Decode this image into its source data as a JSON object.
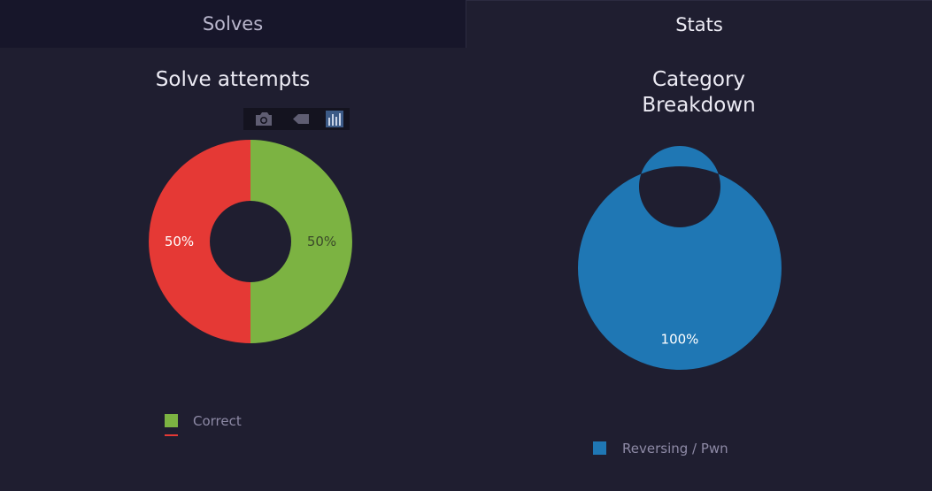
{
  "tabs": {
    "solves": "Solves",
    "stats": "Stats"
  },
  "colors": {
    "correct": "#7cb342",
    "incorrect": "#e53935",
    "category": "#1f77b4",
    "background": "#1f1e30"
  },
  "modebar": {
    "icons": [
      "camera-icon",
      "tag-icon",
      "bar-chart-icon"
    ]
  },
  "chart_data": [
    {
      "type": "pie",
      "title": "Solve attempts",
      "hole": 0.4,
      "slices": [
        {
          "label": "Correct",
          "percent_label": "50%",
          "value": 50,
          "color": "#7cb342"
        },
        {
          "label": "",
          "percent_label": "50%",
          "value": 50,
          "color": "#e53935"
        }
      ],
      "legend": [
        {
          "label": "Correct",
          "color": "#7cb342"
        },
        {
          "label": "",
          "color": "#e53935"
        }
      ],
      "legend_placement": "bottom-left"
    },
    {
      "type": "pie",
      "title_lines": [
        "Category",
        "Breakdown"
      ],
      "hole": 0.4,
      "slices": [
        {
          "label": "Reversing / Pwn",
          "percent_label": "100%",
          "value": 100,
          "color": "#1f77b4"
        }
      ],
      "legend": [
        {
          "label": "Reversing / Pwn",
          "color": "#1f77b4"
        }
      ],
      "legend_placement": "bottom-center"
    }
  ]
}
